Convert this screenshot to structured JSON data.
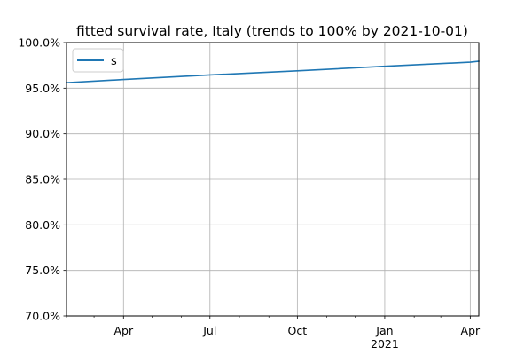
{
  "chart_data": {
    "type": "line",
    "title": "fitted survival rate, Italy (trends to 100% by 2021-10-01)",
    "xlabel": "",
    "ylabel": "",
    "x_axis": {
      "type": "date",
      "range": [
        "2020-02-01",
        "2021-04-10"
      ],
      "major_ticks": [
        {
          "date": "2020-04-01",
          "label": "Apr",
          "sublabel": ""
        },
        {
          "date": "2020-07-01",
          "label": "Jul",
          "sublabel": ""
        },
        {
          "date": "2020-10-01",
          "label": "Oct",
          "sublabel": ""
        },
        {
          "date": "2021-01-01",
          "label": "Jan",
          "sublabel": "2021"
        },
        {
          "date": "2021-04-01",
          "label": "Apr",
          "sublabel": ""
        }
      ],
      "minor_ticks": [
        "2020-02-01",
        "2020-03-01",
        "2020-05-01",
        "2020-06-01",
        "2020-08-01",
        "2020-09-01",
        "2020-11-01",
        "2020-12-01",
        "2021-02-01",
        "2021-03-01"
      ]
    },
    "y_axis": {
      "range": [
        70,
        100
      ],
      "ticks": [
        70,
        75,
        80,
        85,
        90,
        95,
        100
      ],
      "tick_labels": [
        "70.0%",
        "75.0%",
        "80.0%",
        "85.0%",
        "90.0%",
        "95.0%",
        "100.0%"
      ]
    },
    "grid": true,
    "legend": {
      "position": "top-left"
    },
    "series": [
      {
        "name": "s",
        "color": "#1f77b4",
        "points": [
          {
            "x": "2020-02-01",
            "y": 95.6
          },
          {
            "x": "2020-04-01",
            "y": 95.95
          },
          {
            "x": "2020-07-01",
            "y": 96.45
          },
          {
            "x": "2020-10-01",
            "y": 96.9
          },
          {
            "x": "2021-01-01",
            "y": 97.4
          },
          {
            "x": "2021-04-01",
            "y": 97.85
          },
          {
            "x": "2021-04-10",
            "y": 97.95
          }
        ]
      }
    ]
  }
}
